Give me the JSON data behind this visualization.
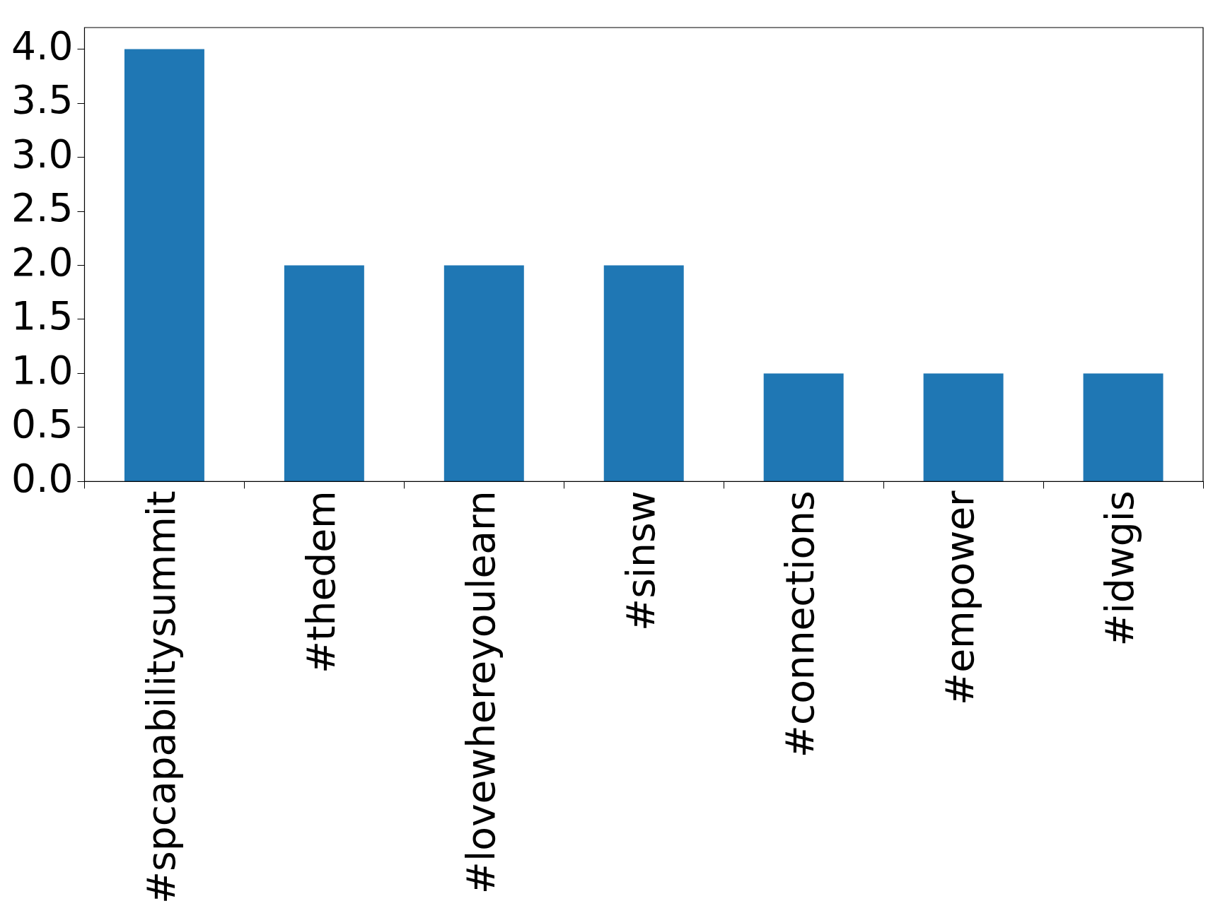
{
  "chart_data": {
    "type": "bar",
    "categories": [
      "#spcapabilitysummit",
      "#thedem",
      "#lovewhereyoulearn",
      "#sinsw",
      "#connections",
      "#empower",
      "#idwgis"
    ],
    "values": [
      4,
      2,
      2,
      2,
      1,
      1,
      1
    ],
    "color": "#1f77b4",
    "ylim": [
      0,
      4.2
    ],
    "yticks": [
      {
        "value": 0,
        "label": "0.0"
      },
      {
        "value": 0.5,
        "label": "0.5"
      },
      {
        "value": 1,
        "label": "1.0"
      },
      {
        "value": 1.5,
        "label": "1.5"
      },
      {
        "value": 2,
        "label": "2.0"
      },
      {
        "value": 2.5,
        "label": "2.5"
      },
      {
        "value": 3,
        "label": "3.0"
      },
      {
        "value": 3.5,
        "label": "3.5"
      },
      {
        "value": 4,
        "label": "4.0"
      }
    ],
    "grid": false,
    "legend": false
  }
}
